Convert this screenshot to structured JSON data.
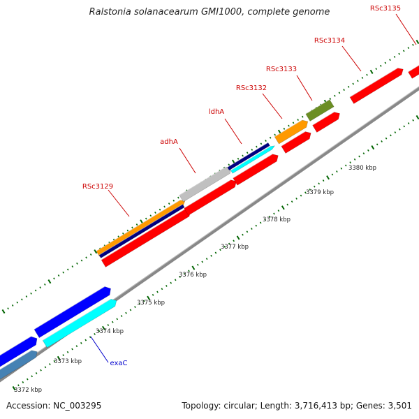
{
  "title": "Ralstonia solanacearum GMI1000, complete genome",
  "accession_text": "Accession: NC_003295",
  "topology_text": "Topology: circular; Length: 3,716,413 bp; Genes: 3,501",
  "colors": {
    "red": "#ff0000",
    "orange": "#ff9900",
    "navy": "#000080",
    "silver": "#c0c0c0",
    "cyan": "#00ffff",
    "blue": "#0000ff",
    "steelblue": "#4682b4",
    "olive": "#6b8e23",
    "backbone": "#888888",
    "tick": "#006400",
    "label_red": "#cc0000",
    "label_blue": "#0000cc"
  },
  "kbp_labels": [
    "3372 kbp",
    "3373 kbp",
    "3374 kbp",
    "3375 kbp",
    "3376 kbp",
    "3377 kbp",
    "3378 kbp",
    "3379 kbp",
    "3380 kbp"
  ],
  "gene_labels": [
    {
      "text": "RSc3129",
      "color": "label_red"
    },
    {
      "text": "adhA",
      "color": "label_red"
    },
    {
      "text": "ldhA",
      "color": "label_red"
    },
    {
      "text": "RSc3132",
      "color": "label_red"
    },
    {
      "text": "RSc3133",
      "color": "label_red"
    },
    {
      "text": "RSc3134",
      "color": "label_red"
    },
    {
      "text": "RSc3135",
      "color": "label_red"
    },
    {
      "text": "exaC",
      "color": "label_blue"
    }
  ]
}
